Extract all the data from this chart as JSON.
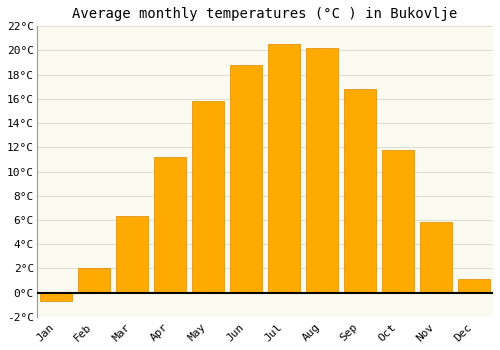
{
  "title": "Average monthly temperatures (°C ) in Bukovlje",
  "months": [
    "Jan",
    "Feb",
    "Mar",
    "Apr",
    "May",
    "Jun",
    "Jul",
    "Aug",
    "Sep",
    "Oct",
    "Nov",
    "Dec"
  ],
  "values": [
    -0.7,
    2.0,
    6.3,
    11.2,
    15.8,
    18.8,
    20.5,
    20.2,
    16.8,
    11.8,
    5.8,
    1.1
  ],
  "bar_color": "#FFAA00",
  "bar_edge_color": "#DD8800",
  "background_color": "#FFFFFF",
  "plot_bg_color": "#FAFAF0",
  "grid_color": "#DDDDCC",
  "ylim": [
    -2,
    22
  ],
  "yticks": [
    -2,
    0,
    2,
    4,
    6,
    8,
    10,
    12,
    14,
    16,
    18,
    20,
    22
  ],
  "title_fontsize": 10,
  "tick_fontsize": 8,
  "bar_width": 0.85
}
